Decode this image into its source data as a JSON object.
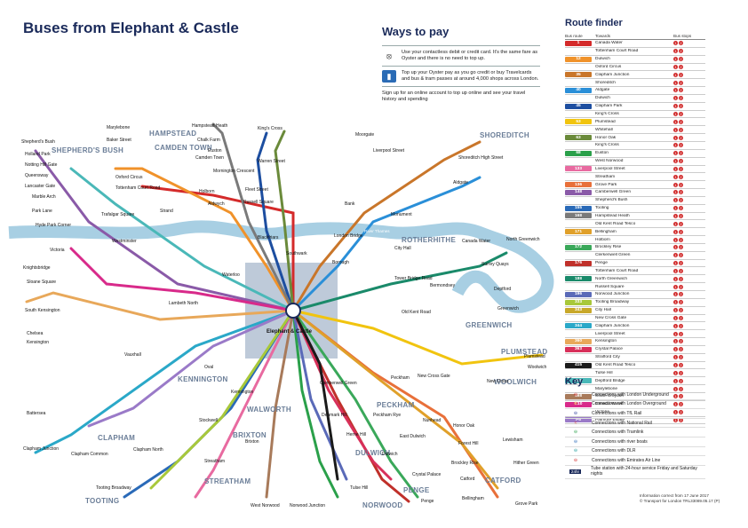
{
  "header": {
    "title": "Buses from Elephant & Castle"
  },
  "ways_to_pay": {
    "title": "Ways to pay",
    "items": [
      {
        "icon": "contactless-icon",
        "text": "Use your contactless debit or credit card. It's the same fare as Oyster and there is no need to top up."
      },
      {
        "icon": "oyster-card-icon",
        "text": "Top up your Oyster pay as you go credit or buy Travelcards and bus & tram passes at around 4,000 shops across London."
      },
      {
        "icon": "",
        "text": "Sign up for an online account to top up online and see your travel history and spending"
      }
    ]
  },
  "route_finder": {
    "title": "Route finder",
    "columns": [
      "Bus route",
      "Towards",
      "Bus stops"
    ],
    "rows": [
      {
        "route": "1",
        "color": "#d42a2a",
        "towards": "Canada Water",
        "stops": [
          "1",
          "2"
        ]
      },
      {
        "route": "",
        "color": "#d42a2a",
        "towards": "Tottenham Court Road",
        "stops": [
          "1",
          "2"
        ]
      },
      {
        "route": "12",
        "color": "#f0922a",
        "towards": "Dulwich",
        "stops": [
          "1",
          "2"
        ]
      },
      {
        "route": "",
        "color": "#f0922a",
        "towards": "Oxford Circus",
        "stops": [
          "1",
          "2"
        ]
      },
      {
        "route": "35",
        "color": "#c9762a",
        "towards": "Clapham Junction",
        "stops": [
          "1",
          "2"
        ]
      },
      {
        "route": "",
        "color": "#c9762a",
        "towards": "Shoreditch",
        "stops": [
          "1",
          "2"
        ]
      },
      {
        "route": "40",
        "color": "#2a8fd8",
        "towards": "Aldgate",
        "stops": [
          "1",
          "2"
        ]
      },
      {
        "route": "",
        "color": "#2a8fd8",
        "towards": "Dulwich",
        "stops": [
          "1",
          "2"
        ]
      },
      {
        "route": "45",
        "color": "#1d4ea0",
        "towards": "Clapham Park",
        "stops": [
          "1",
          "2"
        ]
      },
      {
        "route": "",
        "color": "#1d4ea0",
        "towards": "King's Cross",
        "stops": [
          "1",
          "2"
        ]
      },
      {
        "route": "53",
        "color": "#f1c40f",
        "towards": "Plumstead",
        "stops": [
          "1",
          "2"
        ]
      },
      {
        "route": "",
        "color": "#f1c40f",
        "towards": "Whitehall",
        "stops": [
          "1",
          "2"
        ]
      },
      {
        "route": "63",
        "color": "#6a8a3a",
        "towards": "Honor Oak",
        "stops": [
          "1",
          "2"
        ]
      },
      {
        "route": "",
        "color": "#6a8a3a",
        "towards": "King's Cross",
        "stops": [
          "1",
          "2"
        ]
      },
      {
        "route": "68",
        "color": "#2aa04a",
        "towards": "Euston",
        "stops": [
          "1",
          "2"
        ]
      },
      {
        "route": "",
        "color": "#2aa04a",
        "towards": "West Norwood",
        "stops": [
          "1",
          "2"
        ]
      },
      {
        "route": "133",
        "color": "#e86aa0",
        "towards": "Liverpool Street",
        "stops": [
          "1",
          "2"
        ]
      },
      {
        "route": "",
        "color": "#e86aa0",
        "towards": "Streatham",
        "stops": [
          "1",
          "2"
        ]
      },
      {
        "route": "136",
        "color": "#e8703a",
        "towards": "Grove Park",
        "stops": [
          "1",
          "2"
        ]
      },
      {
        "route": "148",
        "color": "#8a5aa8",
        "towards": "Camberwell Green",
        "stops": [
          "1",
          "2"
        ]
      },
      {
        "route": "",
        "color": "#8a5aa8",
        "towards": "Shepherd's Bush",
        "stops": [
          "1",
          "2"
        ]
      },
      {
        "route": "155",
        "color": "#2a6ab8",
        "towards": "Tooting",
        "stops": [
          "1",
          "2"
        ]
      },
      {
        "route": "168",
        "color": "#7a7a7a",
        "towards": "Hampstead Heath",
        "stops": [
          "1",
          "2"
        ]
      },
      {
        "route": "",
        "color": "#7a7a7a",
        "towards": "Old Kent Road Tesco",
        "stops": [
          "1",
          "2"
        ]
      },
      {
        "route": "171",
        "color": "#e0a02a",
        "towards": "Bellingham",
        "stops": [
          "1",
          "2"
        ]
      },
      {
        "route": "",
        "color": "#e0a02a",
        "towards": "Holborn",
        "stops": [
          "1",
          "2"
        ]
      },
      {
        "route": "172",
        "color": "#3aa85a",
        "towards": "Brockley Rise",
        "stops": [
          "1",
          "2"
        ]
      },
      {
        "route": "",
        "color": "#3aa85a",
        "towards": "Clerkenwell Green",
        "stops": [
          "1",
          "2"
        ]
      },
      {
        "route": "176",
        "color": "#c0302a",
        "towards": "Penge",
        "stops": [
          "1",
          "2"
        ]
      },
      {
        "route": "",
        "color": "#c0302a",
        "towards": "Tottenham Court Road",
        "stops": [
          "1",
          "2"
        ]
      },
      {
        "route": "188",
        "color": "#1a8a6a",
        "towards": "North Greenwich",
        "stops": [
          "1",
          "2"
        ]
      },
      {
        "route": "",
        "color": "#1a8a6a",
        "towards": "Russell Square",
        "stops": [
          "1",
          "2"
        ]
      },
      {
        "route": "196",
        "color": "#5a6ab8",
        "towards": "Norwood Junction",
        "stops": [
          "1",
          "2"
        ]
      },
      {
        "route": "333",
        "color": "#a8c83a",
        "towards": "Tooting Broadway",
        "stops": [
          "1",
          "2"
        ]
      },
      {
        "route": "343",
        "color": "#c8a82a",
        "towards": "City Hall",
        "stops": [
          "1",
          "2"
        ]
      },
      {
        "route": "",
        "color": "#c8a82a",
        "towards": "New Cross Gate",
        "stops": [
          "1",
          "2"
        ]
      },
      {
        "route": "344",
        "color": "#2aa8c8",
        "towards": "Clapham Junction",
        "stops": [
          "1",
          "2"
        ]
      },
      {
        "route": "",
        "color": "#2aa8c8",
        "towards": "Liverpool Street",
        "stops": [
          "1",
          "2"
        ]
      },
      {
        "route": "360",
        "color": "#e8a85a",
        "towards": "Kensington",
        "stops": [
          "1",
          "2"
        ]
      },
      {
        "route": "363",
        "color": "#d8305a",
        "towards": "Crystal Palace",
        "stops": [
          "1",
          "2"
        ]
      },
      {
        "route": "",
        "color": "#d8305a",
        "towards": "Strafford City",
        "stops": [
          "1",
          "2"
        ]
      },
      {
        "route": "415",
        "color": "#1a1a1a",
        "towards": "Old Kent Road Tesco",
        "stops": [
          "1",
          "2"
        ]
      },
      {
        "route": "",
        "color": "#1a1a1a",
        "towards": "Tulse Hill",
        "stops": [
          "1",
          "2"
        ]
      },
      {
        "route": "453",
        "color": "#4ab8b8",
        "towards": "Deptford Bridge",
        "stops": [
          "1",
          "2"
        ]
      },
      {
        "route": "",
        "color": "#4ab8b8",
        "towards": "Marylebone",
        "stops": [
          "1",
          "2"
        ]
      },
      {
        "route": "468",
        "color": "#a87a5a",
        "towards": "South Croydon",
        "stops": [
          "1",
          "2"
        ]
      },
      {
        "route": "C10",
        "color": "#d82a8a",
        "towards": "Canada Water",
        "stops": [
          "1",
          "2"
        ]
      },
      {
        "route": "",
        "color": "#d82a8a",
        "towards": "Victoria",
        "stops": [
          "1",
          "2"
        ]
      },
      {
        "route": "P5",
        "color": "#9a7ac8",
        "towards": "Patmore Estate",
        "stops": [
          "1",
          "2"
        ]
      }
    ]
  },
  "key": {
    "title": "Key",
    "items": [
      {
        "icon": "underground-icon",
        "text": "Connections with London Underground"
      },
      {
        "icon": "overground-icon",
        "text": "Connections with London Overground"
      },
      {
        "icon": "tfl-rail-icon",
        "text": "Connections with TfL Rail"
      },
      {
        "icon": "national-rail-icon",
        "text": "Connections with National Rail"
      },
      {
        "icon": "tramlink-icon",
        "text": "Connections with Tramlink"
      },
      {
        "icon": "river-boat-icon",
        "text": "Connections with river boats"
      },
      {
        "icon": "dlr-icon",
        "text": "Connections with DLR"
      },
      {
        "icon": "cable-car-icon",
        "text": "Connections with Emirates Air Line"
      },
      {
        "icon": "24hr-icon",
        "text": "Tube station with 24-hour service Friday and Saturday nights"
      }
    ]
  },
  "footer": {
    "line1": "Information correct from 17 June 2017",
    "line2": "© Transport for London   TRL33089.05.17 (P)"
  },
  "areas": [
    "HAMPSTEAD",
    "CAMDEN TOWN",
    "SHEPHERD'S BUSH",
    "SHOREDITCH",
    "ROTHERHITHE",
    "GREENWICH",
    "PLUMSTEAD",
    "WOOLWICH",
    "KENNINGTON",
    "WALWORTH",
    "PECKHAM",
    "BRIXTON",
    "CLAPHAM",
    "DULWICH",
    "STREATHAM",
    "PENGE",
    "NORWOOD",
    "CATFORD",
    "TOOTING"
  ],
  "river": "River Thames",
  "places": [
    "Marylebone",
    "Baker Street",
    "Hampstead Heath",
    "Chalk Farm",
    "Camden Town",
    "Euston",
    "King's Cross",
    "Mornington Crescent",
    "Warren Street",
    "Russell Square",
    "Holborn",
    "Fleet Street",
    "Aldwych",
    "Strand",
    "Trafalgar Square",
    "Oxford Circus",
    "Tottenham Court Road",
    "Shepherd's Bush",
    "Holland Park",
    "Notting Hill Gate",
    "Queensway",
    "Lancaster Gate",
    "Marble Arch",
    "Park Lane",
    "Hyde Park Corner",
    "Victoria",
    "Westminster",
    "Waterloo",
    "Lambeth North",
    "Kennington",
    "Vauxhall",
    "Oval",
    "Kensington",
    "South Kensington",
    "Sloane Square",
    "Knightsbridge",
    "Chelsea",
    "Battersea",
    "Clapham Junction",
    "Clapham Common",
    "Clapham North",
    "Stockwell",
    "Brixton",
    "Tulse Hill",
    "West Norwood",
    "Streatham",
    "Tooting Broadway",
    "Camberwell Green",
    "Denmark Hill",
    "Peckham",
    "Peckham Rye",
    "Nunhead",
    "Honor Oak",
    "Forest Hill",
    "Catford",
    "Bellingham",
    "Lewisham",
    "New Cross",
    "New Cross Gate",
    "Deptford",
    "Greenwich",
    "North Greenwich",
    "Woolwich",
    "Plumstead",
    "Canada Water",
    "Surrey Quays",
    "Bermondsey",
    "London Bridge",
    "Borough",
    "Old Kent Road",
    "Tower Bridge Road",
    "Liverpool Street",
    "Aldgate",
    "Shoreditch High Street",
    "Moorgate",
    "Bank",
    "Monument",
    "Southwark",
    "Blackfriars",
    "City Hall",
    "Crystal Palace",
    "Penge",
    "Norwood Junction",
    "Dulwich",
    "Herne Hill",
    "East Dulwich",
    "Grove Park",
    "Brockley Rise",
    "Hither Green",
    "Elephant & Castle"
  ]
}
